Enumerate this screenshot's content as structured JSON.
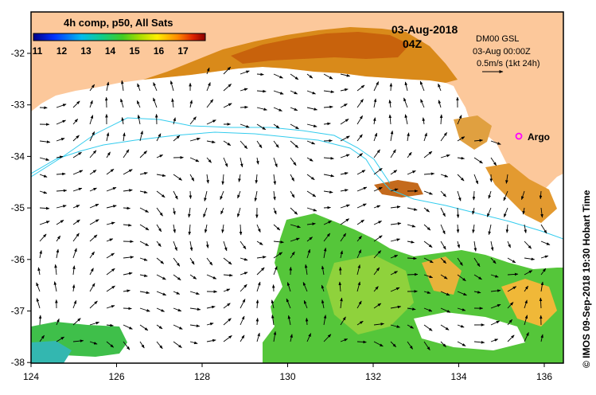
{
  "map": {
    "title": "4h comp, p50, All Sats",
    "date": "03-Aug-2018",
    "time": "04Z",
    "model": "DM00 GSL",
    "model_time": "03-Aug 00:00Z",
    "arrow_scale": "0.5m/s (1kt 24h)",
    "marker_label": "Argo",
    "credit": "© IMOS 09-Sep-2018 19:30 Hobart Time",
    "colorbar_ticks": [
      "11",
      "12",
      "13",
      "14",
      "15",
      "16",
      "17"
    ],
    "x_ticks": [
      "124",
      "126",
      "128",
      "130",
      "132",
      "134",
      "136"
    ],
    "y_ticks": [
      "-32",
      "-33",
      "-34",
      "-35",
      "-36",
      "-37",
      "-38"
    ],
    "colors": {
      "land": "#fcc89b",
      "sea": "#ffffff",
      "marker": "#ff00ff",
      "contour": "#33ccee"
    }
  }
}
